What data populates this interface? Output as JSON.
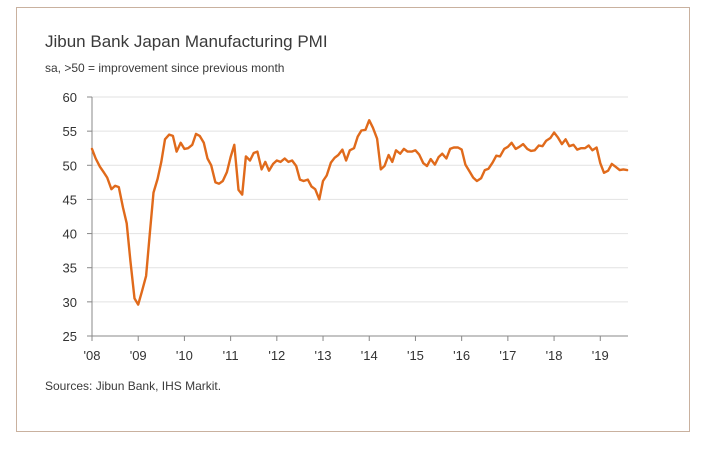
{
  "chart_data": {
    "type": "line",
    "title": "Jibun Bank Japan Manufacturing PMI",
    "subtitle": "sa, >50 = improvement since previous month",
    "source": "Sources: Jibun Bank, IHS Markit.",
    "xlabel": "",
    "ylabel": "",
    "ylim": [
      25,
      60
    ],
    "yticks": [
      25,
      30,
      35,
      40,
      45,
      50,
      55,
      60
    ],
    "xticks": [
      {
        "label": "'08",
        "x": 2008.0
      },
      {
        "label": "'09",
        "x": 2009.0
      },
      {
        "label": "'10",
        "x": 2010.0
      },
      {
        "label": "'11",
        "x": 2011.0
      },
      {
        "label": "'12",
        "x": 2012.0
      },
      {
        "label": "'13",
        "x": 2013.0
      },
      {
        "label": "'14",
        "x": 2014.0
      },
      {
        "label": "'15",
        "x": 2015.0
      },
      {
        "label": "'16",
        "x": 2016.0
      },
      {
        "label": "'17",
        "x": 2017.0
      },
      {
        "label": "'18",
        "x": 2018.0
      },
      {
        "label": "'19",
        "x": 2019.0
      }
    ],
    "xlim": [
      2008.0,
      2019.6
    ],
    "grid": true,
    "line_color": "#e06a1b",
    "series": [
      {
        "name": "Jibun Bank Japan Manufacturing PMI",
        "points": [
          [
            2008.0,
            52.4
          ],
          [
            2008.08,
            51.0
          ],
          [
            2008.17,
            49.8
          ],
          [
            2008.25,
            49.0
          ],
          [
            2008.33,
            48.2
          ],
          [
            2008.42,
            46.5
          ],
          [
            2008.5,
            47.0
          ],
          [
            2008.58,
            46.8
          ],
          [
            2008.67,
            43.8
          ],
          [
            2008.75,
            41.5
          ],
          [
            2008.83,
            36.0
          ],
          [
            2008.92,
            30.5
          ],
          [
            2009.0,
            29.6
          ],
          [
            2009.08,
            31.5
          ],
          [
            2009.17,
            33.8
          ],
          [
            2009.25,
            40.0
          ],
          [
            2009.33,
            46.0
          ],
          [
            2009.42,
            48.0
          ],
          [
            2009.5,
            50.5
          ],
          [
            2009.58,
            53.8
          ],
          [
            2009.67,
            54.5
          ],
          [
            2009.75,
            54.3
          ],
          [
            2009.83,
            52.0
          ],
          [
            2009.92,
            53.3
          ],
          [
            2010.0,
            52.4
          ],
          [
            2010.08,
            52.5
          ],
          [
            2010.17,
            53.0
          ],
          [
            2010.25,
            54.6
          ],
          [
            2010.33,
            54.3
          ],
          [
            2010.42,
            53.3
          ],
          [
            2010.5,
            51.0
          ],
          [
            2010.58,
            50.0
          ],
          [
            2010.67,
            47.5
          ],
          [
            2010.75,
            47.3
          ],
          [
            2010.83,
            47.7
          ],
          [
            2010.92,
            49.0
          ],
          [
            2011.0,
            51.2
          ],
          [
            2011.08,
            53.0
          ],
          [
            2011.17,
            46.4
          ],
          [
            2011.25,
            45.7
          ],
          [
            2011.33,
            51.3
          ],
          [
            2011.42,
            50.7
          ],
          [
            2011.5,
            51.8
          ],
          [
            2011.58,
            52.0
          ],
          [
            2011.67,
            49.4
          ],
          [
            2011.75,
            50.5
          ],
          [
            2011.83,
            49.2
          ],
          [
            2011.92,
            50.2
          ],
          [
            2012.0,
            50.7
          ],
          [
            2012.08,
            50.5
          ],
          [
            2012.17,
            51.0
          ],
          [
            2012.25,
            50.5
          ],
          [
            2012.33,
            50.7
          ],
          [
            2012.42,
            49.9
          ],
          [
            2012.5,
            47.9
          ],
          [
            2012.58,
            47.7
          ],
          [
            2012.67,
            47.9
          ],
          [
            2012.75,
            46.9
          ],
          [
            2012.83,
            46.5
          ],
          [
            2012.92,
            45.0
          ],
          [
            2013.0,
            47.7
          ],
          [
            2013.08,
            48.5
          ],
          [
            2013.17,
            50.4
          ],
          [
            2013.25,
            51.1
          ],
          [
            2013.33,
            51.5
          ],
          [
            2013.42,
            52.3
          ],
          [
            2013.5,
            50.7
          ],
          [
            2013.58,
            52.2
          ],
          [
            2013.67,
            52.5
          ],
          [
            2013.75,
            54.2
          ],
          [
            2013.83,
            55.1
          ],
          [
            2013.92,
            55.2
          ],
          [
            2014.0,
            56.6
          ],
          [
            2014.08,
            55.5
          ],
          [
            2014.17,
            53.9
          ],
          [
            2014.25,
            49.4
          ],
          [
            2014.33,
            49.9
          ],
          [
            2014.42,
            51.5
          ],
          [
            2014.5,
            50.5
          ],
          [
            2014.58,
            52.2
          ],
          [
            2014.67,
            51.7
          ],
          [
            2014.75,
            52.4
          ],
          [
            2014.83,
            52.0
          ],
          [
            2014.92,
            52.0
          ],
          [
            2015.0,
            52.2
          ],
          [
            2015.08,
            51.6
          ],
          [
            2015.17,
            50.3
          ],
          [
            2015.25,
            49.9
          ],
          [
            2015.33,
            50.9
          ],
          [
            2015.42,
            50.1
          ],
          [
            2015.5,
            51.2
          ],
          [
            2015.58,
            51.7
          ],
          [
            2015.67,
            51.0
          ],
          [
            2015.75,
            52.4
          ],
          [
            2015.83,
            52.6
          ],
          [
            2015.92,
            52.6
          ],
          [
            2016.0,
            52.3
          ],
          [
            2016.08,
            50.1
          ],
          [
            2016.17,
            49.1
          ],
          [
            2016.25,
            48.2
          ],
          [
            2016.33,
            47.7
          ],
          [
            2016.42,
            48.1
          ],
          [
            2016.5,
            49.3
          ],
          [
            2016.58,
            49.5
          ],
          [
            2016.67,
            50.4
          ],
          [
            2016.75,
            51.4
          ],
          [
            2016.83,
            51.3
          ],
          [
            2016.92,
            52.4
          ],
          [
            2017.0,
            52.7
          ],
          [
            2017.08,
            53.3
          ],
          [
            2017.17,
            52.4
          ],
          [
            2017.25,
            52.7
          ],
          [
            2017.33,
            53.1
          ],
          [
            2017.42,
            52.4
          ],
          [
            2017.5,
            52.1
          ],
          [
            2017.58,
            52.2
          ],
          [
            2017.67,
            52.9
          ],
          [
            2017.75,
            52.8
          ],
          [
            2017.83,
            53.6
          ],
          [
            2017.92,
            54.0
          ],
          [
            2018.0,
            54.8
          ],
          [
            2018.08,
            54.1
          ],
          [
            2018.17,
            53.1
          ],
          [
            2018.25,
            53.8
          ],
          [
            2018.33,
            52.8
          ],
          [
            2018.42,
            53.0
          ],
          [
            2018.5,
            52.3
          ],
          [
            2018.58,
            52.5
          ],
          [
            2018.67,
            52.5
          ],
          [
            2018.75,
            52.9
          ],
          [
            2018.83,
            52.2
          ],
          [
            2018.92,
            52.6
          ],
          [
            2019.0,
            50.3
          ],
          [
            2019.08,
            48.9
          ],
          [
            2019.17,
            49.2
          ],
          [
            2019.25,
            50.2
          ],
          [
            2019.33,
            49.8
          ],
          [
            2019.42,
            49.3
          ],
          [
            2019.5,
            49.4
          ],
          [
            2019.58,
            49.3
          ]
        ]
      }
    ]
  }
}
